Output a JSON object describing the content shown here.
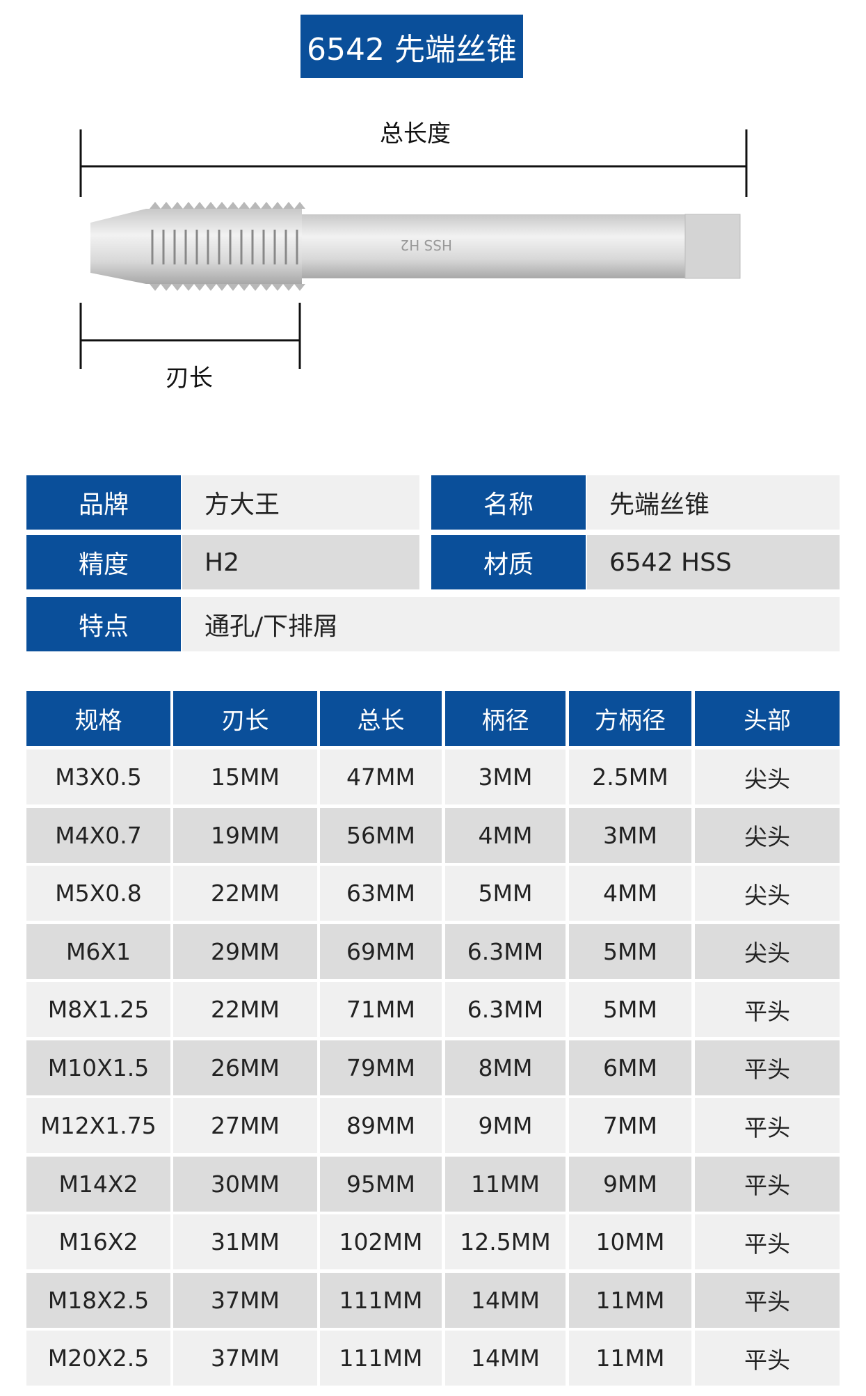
{
  "title": "6542 先端丝锥",
  "diagram": {
    "total_length_label": "总长度",
    "blade_length_label": "刃长",
    "shank_marking": "HSS H2"
  },
  "info": [
    [
      {
        "label": "品牌",
        "value": "方大王"
      },
      {
        "label": "名称",
        "value": "先端丝锥"
      }
    ],
    [
      {
        "label": "精度",
        "value": "H2"
      },
      {
        "label": "材质",
        "value": "6542 HSS"
      }
    ],
    [
      {
        "label": "特点",
        "value": "通孔/下排屑"
      }
    ]
  ],
  "spec_table": {
    "headers": [
      "规格",
      "刃长",
      "总长",
      "柄径",
      "方柄径",
      "头部"
    ],
    "rows": [
      [
        "M3X0.5",
        "15MM",
        "47MM",
        "3MM",
        "2.5MM",
        "尖头"
      ],
      [
        "M4X0.7",
        "19MM",
        "56MM",
        "4MM",
        "3MM",
        "尖头"
      ],
      [
        "M5X0.8",
        "22MM",
        "63MM",
        "5MM",
        "4MM",
        "尖头"
      ],
      [
        "M6X1",
        "29MM",
        "69MM",
        "6.3MM",
        "5MM",
        "尖头"
      ],
      [
        "M8X1.25",
        "22MM",
        "71MM",
        "6.3MM",
        "5MM",
        "平头"
      ],
      [
        "M10X1.5",
        "26MM",
        "79MM",
        "8MM",
        "6MM",
        "平头"
      ],
      [
        "M12X1.75",
        "27MM",
        "89MM",
        "9MM",
        "7MM",
        "平头"
      ],
      [
        "M14X2",
        "30MM",
        "95MM",
        "11MM",
        "9MM",
        "平头"
      ],
      [
        "M16X2",
        "31MM",
        "102MM",
        "12.5MM",
        "10MM",
        "平头"
      ],
      [
        "M18X2.5",
        "37MM",
        "111MM",
        "14MM",
        "11MM",
        "平头"
      ],
      [
        "M20X2.5",
        "37MM",
        "111MM",
        "14MM",
        "11MM",
        "平头"
      ]
    ]
  },
  "colors": {
    "accent": "#0a4f9a",
    "row_light": "#f0f0f0",
    "row_dark": "#dcdcdc"
  }
}
